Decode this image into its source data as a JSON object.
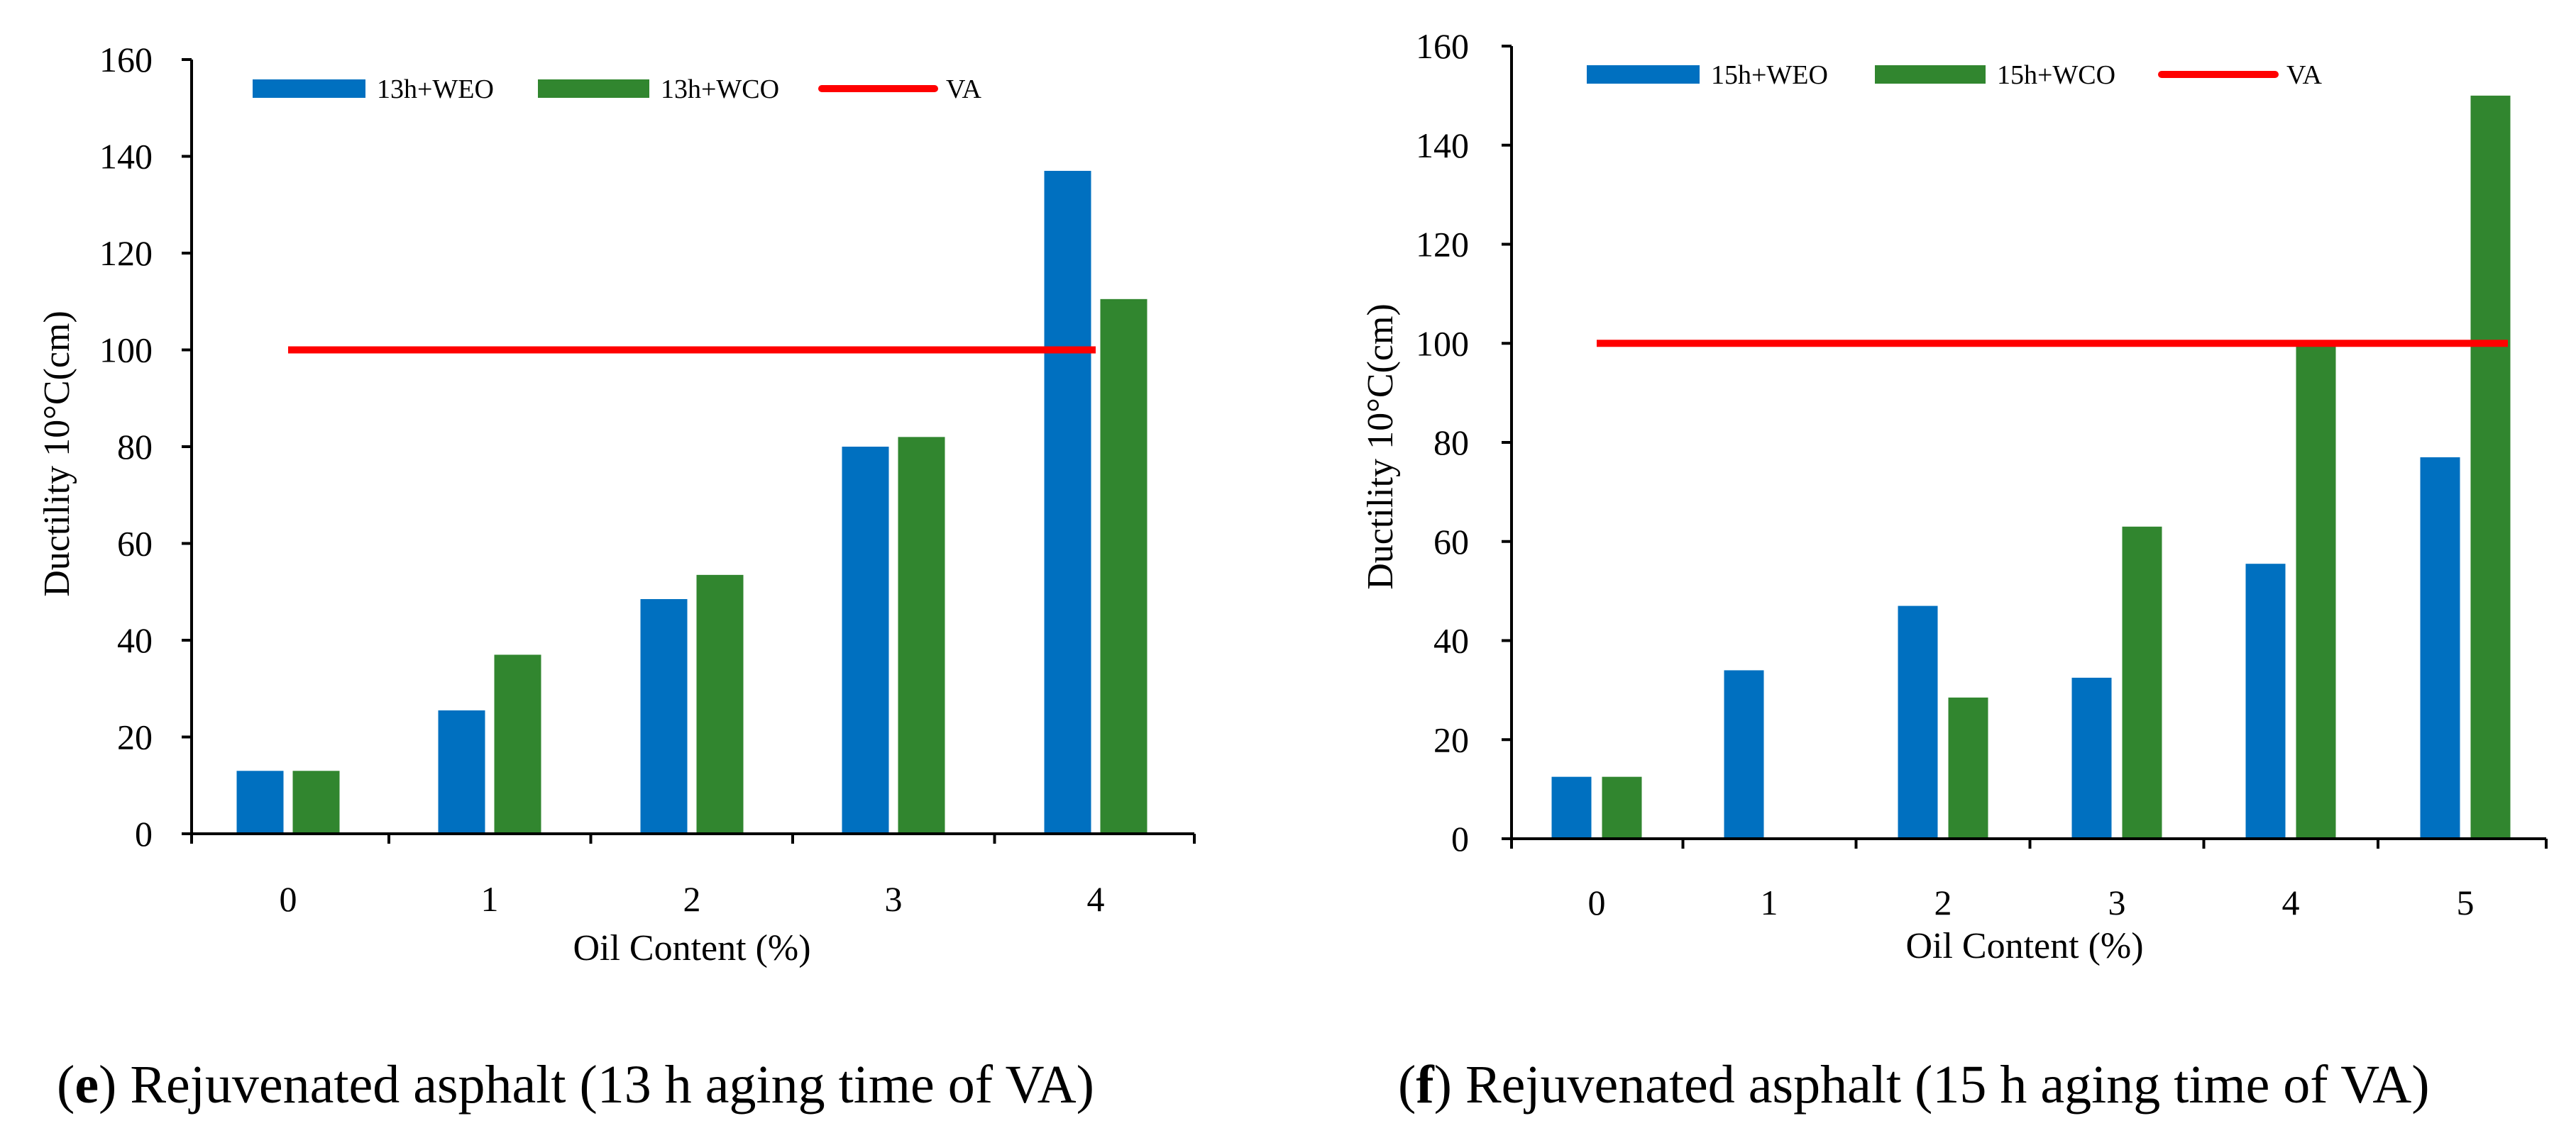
{
  "colors": {
    "weo": "#0070c0",
    "wco": "#31862f",
    "va": "#ff0000",
    "axis": "#000000"
  },
  "chart_data": [
    {
      "type": "bar",
      "panel": "e",
      "categories": [
        "0",
        "1",
        "2",
        "3",
        "4"
      ],
      "series": [
        {
          "name": "13h+WEO",
          "values": [
            13,
            25.5,
            48.5,
            80,
            137
          ]
        },
        {
          "name": "13h+WCO",
          "values": [
            13,
            37,
            53.5,
            82,
            110.5
          ]
        }
      ],
      "reference_line": {
        "name": "VA",
        "value": 100
      },
      "xlabel": "Oil Content (%)",
      "ylabel": "Ductility  10°C(cm)",
      "ylim": [
        0,
        160
      ],
      "yticks": [
        "0",
        "20",
        "40",
        "60",
        "80",
        "100",
        "120",
        "140",
        "160"
      ],
      "legend": [
        "13h+WEO",
        "13h+WCO",
        "VA"
      ],
      "legend_position": "top",
      "caption_letter": "e",
      "caption_text": " Rejuvenated asphalt (13 h aging time of VA)"
    },
    {
      "type": "bar",
      "panel": "f",
      "categories": [
        "0",
        "1",
        "2",
        "3",
        "4",
        "5"
      ],
      "series": [
        {
          "name": "15h+WEO",
          "values": [
            12.5,
            34,
            47,
            32.5,
            55.5,
            77
          ]
        },
        {
          "name": "15h+WCO",
          "values": [
            12.5,
            0,
            28.5,
            63,
            100,
            150
          ]
        }
      ],
      "reference_line": {
        "name": "VA",
        "value": 100
      },
      "xlabel": "Oil Content (%)",
      "ylabel": "Ductility  10°C(cm)",
      "ylim": [
        0,
        160
      ],
      "yticks": [
        "0",
        "20",
        "40",
        "60",
        "80",
        "100",
        "120",
        "140",
        "160"
      ],
      "legend": [
        "15h+WEO",
        "15h+WCO",
        "VA"
      ],
      "legend_position": "top",
      "caption_letter": "f",
      "caption_text": " Rejuvenated asphalt (15 h aging time of VA)"
    }
  ]
}
